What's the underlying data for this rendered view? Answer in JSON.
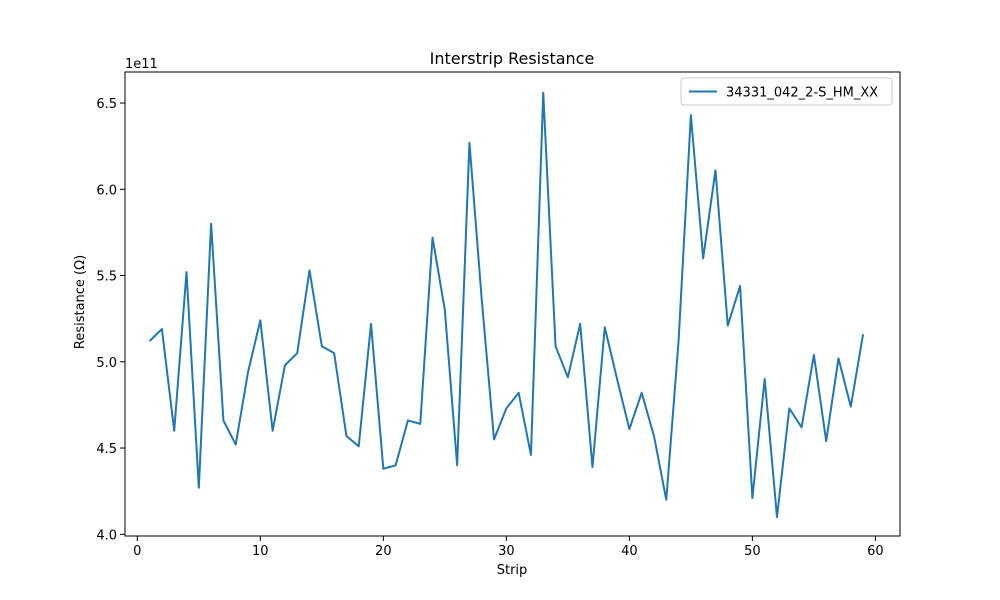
{
  "chart_data": {
    "type": "line",
    "title": "Interstrip Resistance",
    "xlabel": "Strip",
    "ylabel": "Resistance (Ω)",
    "y_offset_label": "1e11",
    "y_multiplier": 100000000000.0,
    "xlim": [
      -1,
      62
    ],
    "ylim": [
      3.99,
      6.68
    ],
    "xticks": [
      0,
      10,
      20,
      30,
      40,
      50,
      60
    ],
    "yticks": [
      4.0,
      4.5,
      5.0,
      5.5,
      6.0,
      6.5
    ],
    "ytick_labels": [
      "4.0",
      "4.5",
      "5.0",
      "5.5",
      "6.0",
      "6.5"
    ],
    "grid": false,
    "legend_position": "top-right",
    "series": [
      {
        "name": "34331_042_2-S_HM_XX",
        "color": "#1f77b4",
        "x": [
          1,
          2,
          3,
          4,
          5,
          6,
          7,
          8,
          9,
          10,
          11,
          12,
          13,
          14,
          15,
          16,
          17,
          18,
          19,
          20,
          21,
          22,
          23,
          24,
          25,
          26,
          27,
          28,
          29,
          30,
          31,
          32,
          33,
          34,
          35,
          36,
          37,
          38,
          39,
          40,
          41,
          42,
          43,
          44,
          45,
          46,
          47,
          48,
          49,
          50,
          51,
          52,
          53,
          54,
          55,
          56,
          57,
          58,
          59
        ],
        "y": [
          5.12,
          5.19,
          4.6,
          5.52,
          4.27,
          5.8,
          4.66,
          4.52,
          4.94,
          5.24,
          4.6,
          4.98,
          5.05,
          5.53,
          5.09,
          5.05,
          4.57,
          4.51,
          5.22,
          4.38,
          4.4,
          4.66,
          4.64,
          5.72,
          5.3,
          4.4,
          6.27,
          5.36,
          4.55,
          4.73,
          4.82,
          4.46,
          6.56,
          5.09,
          4.91,
          5.22,
          4.39,
          5.2,
          4.9,
          4.61,
          4.82,
          4.57,
          4.2,
          5.12,
          6.43,
          5.6,
          6.11,
          5.21,
          5.44,
          4.21,
          4.9,
          4.1,
          4.73,
          4.62,
          5.04,
          4.54,
          5.02,
          4.74,
          5.16
        ]
      }
    ]
  }
}
